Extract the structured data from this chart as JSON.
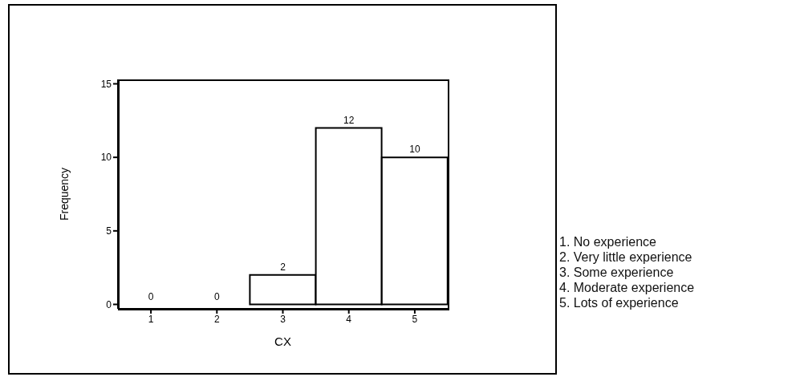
{
  "chart_data": {
    "type": "bar",
    "categories": [
      "1",
      "2",
      "3",
      "4",
      "5"
    ],
    "values": [
      0,
      0,
      2,
      12,
      10
    ],
    "color": "#ffffff",
    "xlabel": "CX",
    "ylabel": "Frequency",
    "ylim": [
      -0.3,
      15.3
    ],
    "yticks": [
      0,
      5,
      10,
      15
    ],
    "grid": false,
    "legend": false,
    "data_labels": true,
    "annotations": [
      "1. No experience",
      "2. Very little experience",
      "3. Some experience",
      "4. Moderate experience",
      "5. Lots of experience"
    ]
  }
}
